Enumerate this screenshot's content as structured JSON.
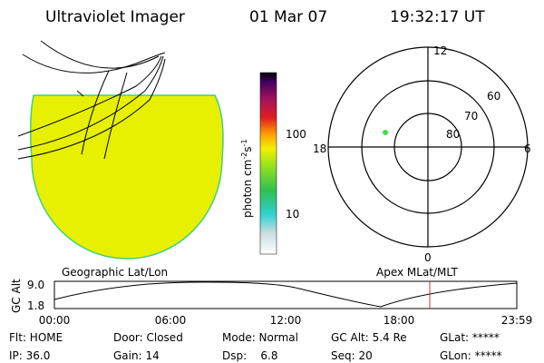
{
  "header": {
    "title": "Ultraviolet Imager",
    "date": "01 Mar 07",
    "time": "19:32:17 UT"
  },
  "colorbar": {
    "label": {
      "base": "photon cm",
      "exp1": "-2",
      "unit2": "s",
      "exp2": "-1"
    },
    "ticks": [
      "100",
      "10"
    ]
  },
  "polar": {
    "mlt_labels": {
      "top": "12",
      "bottom": "0",
      "left": "18",
      "right": "6"
    },
    "lat_labels": [
      "60",
      "70",
      "80"
    ]
  },
  "altitude_plot": {
    "left_title": "Geographic Lat/Lon",
    "right_title": "Apex MLat/MLT",
    "y_label": "GC Alt",
    "y_ticks": [
      "9.0",
      "1.8"
    ],
    "x_ticks": [
      "00:00",
      "06:00",
      "12:00",
      "18:00",
      "23:59"
    ]
  },
  "status": {
    "rows": [
      [
        "Flt: HOME",
        "Door: Closed",
        "Mode: Normal",
        "GC Alt: 5.4 Re",
        "GLat: *****"
      ],
      [
        "IP: 36.0",
        "Gain: 14",
        "Dsp:    6.8",
        "Seq: 20",
        "GLon: *****"
      ]
    ]
  }
}
